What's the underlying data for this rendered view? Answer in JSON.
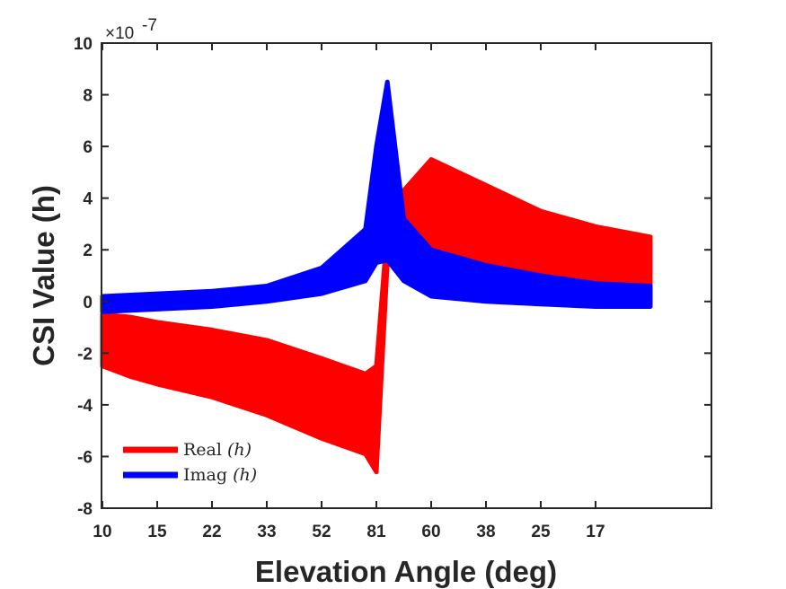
{
  "chart_data": {
    "type": "area",
    "title": "",
    "xlabel": "Elevation Angle (deg)",
    "ylabel": "CSI Value (h)",
    "y_exponent_label": "×10",
    "y_exponent_power": "-7",
    "ylim": [
      -8,
      10
    ],
    "xlim": [
      0,
      11
    ],
    "x_tick_positions": [
      0,
      1,
      2,
      3,
      4,
      5,
      6,
      7,
      8,
      9
    ],
    "x_tick_labels": [
      "10",
      "15",
      "22",
      "33",
      "52",
      "81",
      "60",
      "38",
      "25",
      "17"
    ],
    "y_ticks": [
      -8,
      -6,
      -4,
      -2,
      0,
      2,
      4,
      6,
      8,
      10
    ],
    "y_tick_labels": [
      "-8",
      "-6",
      "-4",
      "-2",
      "0",
      "2",
      "4",
      "6",
      "8",
      "10"
    ],
    "grid": false,
    "legend_position": "bottom-left",
    "series": [
      {
        "name": "Real",
        "name_var": "(h)",
        "color": "#ff0000",
        "x": [
          0,
          0.5,
          1,
          2,
          3,
          4,
          4.8,
          5.0,
          5.2,
          5.5,
          6,
          7,
          8,
          9,
          10
        ],
        "upper": [
          -0.5,
          -0.6,
          -0.8,
          -1.1,
          -1.5,
          -2.2,
          -2.8,
          -2.5,
          2.8,
          4.3,
          5.5,
          4.5,
          3.5,
          2.9,
          2.5
        ],
        "lower": [
          -2.5,
          -2.9,
          -3.2,
          -3.7,
          -4.4,
          -5.3,
          -5.9,
          -6.6,
          1.5,
          1.7,
          0.9,
          0.8,
          0.6,
          0.5,
          0.3
        ]
      },
      {
        "name": "Imag",
        "name_var": "(h)",
        "color": "#0000ff",
        "x": [
          0,
          1,
          2,
          3,
          4,
          4.8,
          5.0,
          5.2,
          5.5,
          6,
          7,
          8,
          9,
          10
        ],
        "upper": [
          0.2,
          0.3,
          0.4,
          0.6,
          1.3,
          2.8,
          6.0,
          8.5,
          3.2,
          2.0,
          1.4,
          1.0,
          0.7,
          0.6
        ],
        "lower": [
          -0.4,
          -0.3,
          -0.2,
          0.0,
          0.3,
          0.8,
          1.5,
          1.6,
          0.8,
          0.2,
          0.0,
          -0.1,
          -0.2,
          -0.2
        ]
      }
    ]
  }
}
